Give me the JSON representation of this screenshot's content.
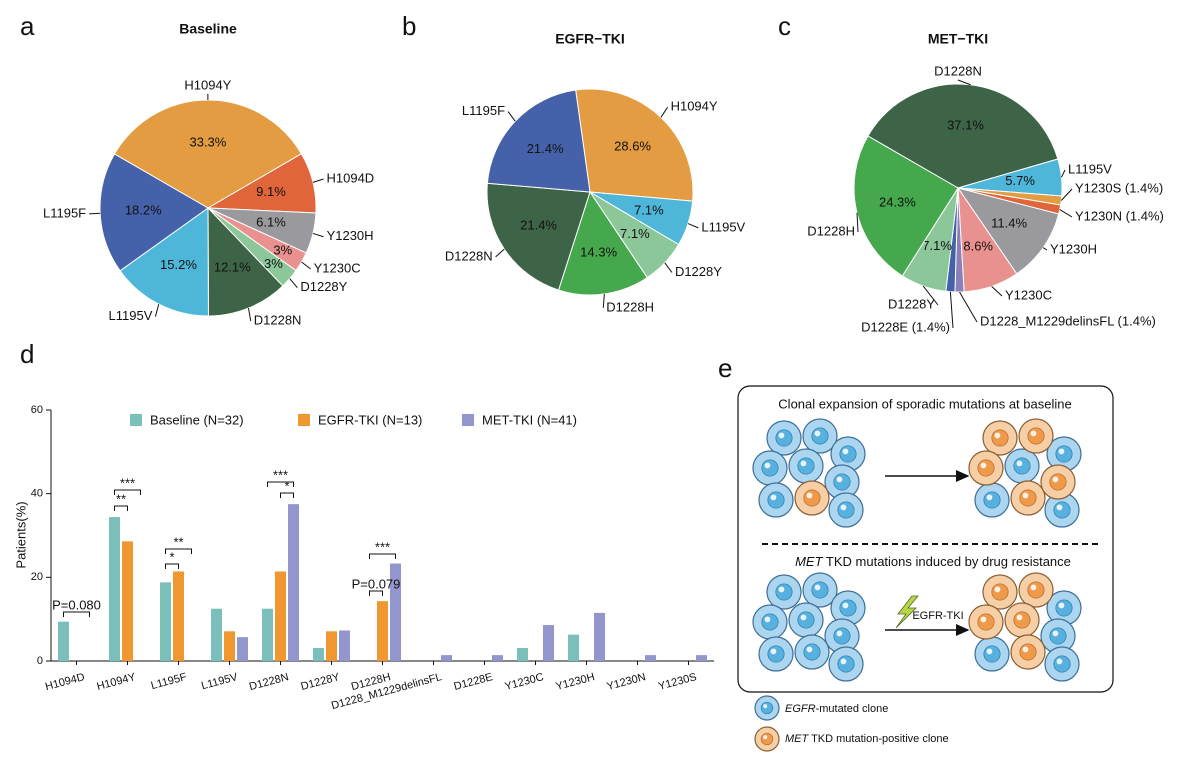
{
  "panels": [
    "a",
    "b",
    "c",
    "d",
    "e"
  ],
  "chart_data": [
    {
      "type": "pie",
      "title": "Baseline",
      "categories": [
        "H1094Y",
        "H1094D",
        "Y1230H",
        "Y1230C",
        "D1228Y",
        "D1228N",
        "L1195V",
        "L1195F"
      ],
      "values": [
        33.3,
        9.1,
        6.1,
        3,
        3,
        12.1,
        15.2,
        18.2
      ],
      "value_labels": [
        "33.3%",
        "9.1%",
        "6.1%",
        "3%",
        "3%",
        "12.1%",
        "15.2%",
        "18.2%"
      ],
      "colors": [
        "#e39c42",
        "#e0653a",
        "#9a999e",
        "#e9918e",
        "#8cc79a",
        "#3e6447",
        "#4db6d9",
        "#4561a9"
      ]
    },
    {
      "type": "pie",
      "title": "EGFR−TKI",
      "categories": [
        "H1094Y",
        "L1195V",
        "D1228Y",
        "D1228H",
        "D1228N",
        "L1195F"
      ],
      "values": [
        28.6,
        7.1,
        7.1,
        14.3,
        21.4,
        21.4
      ],
      "value_labels": [
        "28.6%",
        "7.1%",
        "7.1%",
        "14.3%",
        "21.4%",
        "21.4%"
      ],
      "colors": [
        "#e39c42",
        "#4db6d9",
        "#8cc79a",
        "#45a84c",
        "#3e6447",
        "#4561a9"
      ]
    },
    {
      "type": "pie",
      "title": "MET−TKI",
      "categories": [
        "D1228N",
        "L1195V",
        "Y1230S (1.4%)",
        "Y1230N (1.4%)",
        "Y1230H",
        "Y1230C",
        "D1228_M1229delinsFL (1.4%)",
        "D1228E (1.4%)",
        "D1228Y",
        "D1228H"
      ],
      "values": [
        37.1,
        5.7,
        1.4,
        1.4,
        11.4,
        8.6,
        1.4,
        1.4,
        7.1,
        24.3
      ],
      "value_labels": [
        "37.1%",
        "5.7%",
        null,
        null,
        "11.4%",
        "8.6%",
        null,
        null,
        "7.1%",
        "24.3%"
      ],
      "colors": [
        "#3e6447",
        "#4db6d9",
        "#e39c42",
        "#e0653a",
        "#9a999e",
        "#e9918e",
        "#8a7fb8",
        "#4561a9",
        "#8cc79a",
        "#45a84c"
      ]
    },
    {
      "type": "bar",
      "ylabel": "Patients(%)",
      "categories": [
        "H1094D",
        "H1094Y",
        "L1195F",
        "L1195V",
        "D1228N",
        "D1228Y",
        "D1228H",
        "D1228_M1229delinsFL",
        "D1228E",
        "Y1230C",
        "Y1230H",
        "Y1230N",
        "Y1230S"
      ],
      "series": [
        {
          "name": "Baseline (N=32)",
          "color": "#7bbfba",
          "values": [
            9.4,
            34.4,
            18.8,
            12.5,
            12.5,
            3.1,
            0,
            0,
            0,
            3.1,
            6.3,
            0,
            0
          ]
        },
        {
          "name": "EGFR-TKI (N=13)",
          "color": "#f0972f",
          "values": [
            0,
            28.6,
            21.4,
            7.1,
            21.4,
            7.1,
            14.3,
            0,
            0,
            0,
            0,
            0,
            0
          ]
        },
        {
          "name": "MET-TKI (N=41)",
          "color": "#9296cc",
          "values": [
            0,
            0,
            0,
            5.7,
            37.5,
            7.3,
            23.3,
            1.4,
            1.4,
            8.6,
            11.5,
            1.4,
            1.4
          ]
        }
      ],
      "ylim": [
        0,
        60
      ],
      "yticks": [
        0,
        20,
        40,
        60
      ],
      "annotations": [
        "P=0.080",
        "***",
        "**",
        "**",
        "*",
        "***",
        "*",
        "P=0.079",
        "***"
      ]
    }
  ],
  "diagram": {
    "title_top": "Clonal expansion of sporadic mutations at baseline",
    "title_bottom": [
      "MET",
      " TKD mutations induced by drug resistance"
    ],
    "arrow_label": "EGFR-TKI",
    "legend": [
      [
        "EGFR",
        "-mutated clone"
      ],
      [
        "MET",
        " TKD mutation-positive clone"
      ]
    ]
  }
}
